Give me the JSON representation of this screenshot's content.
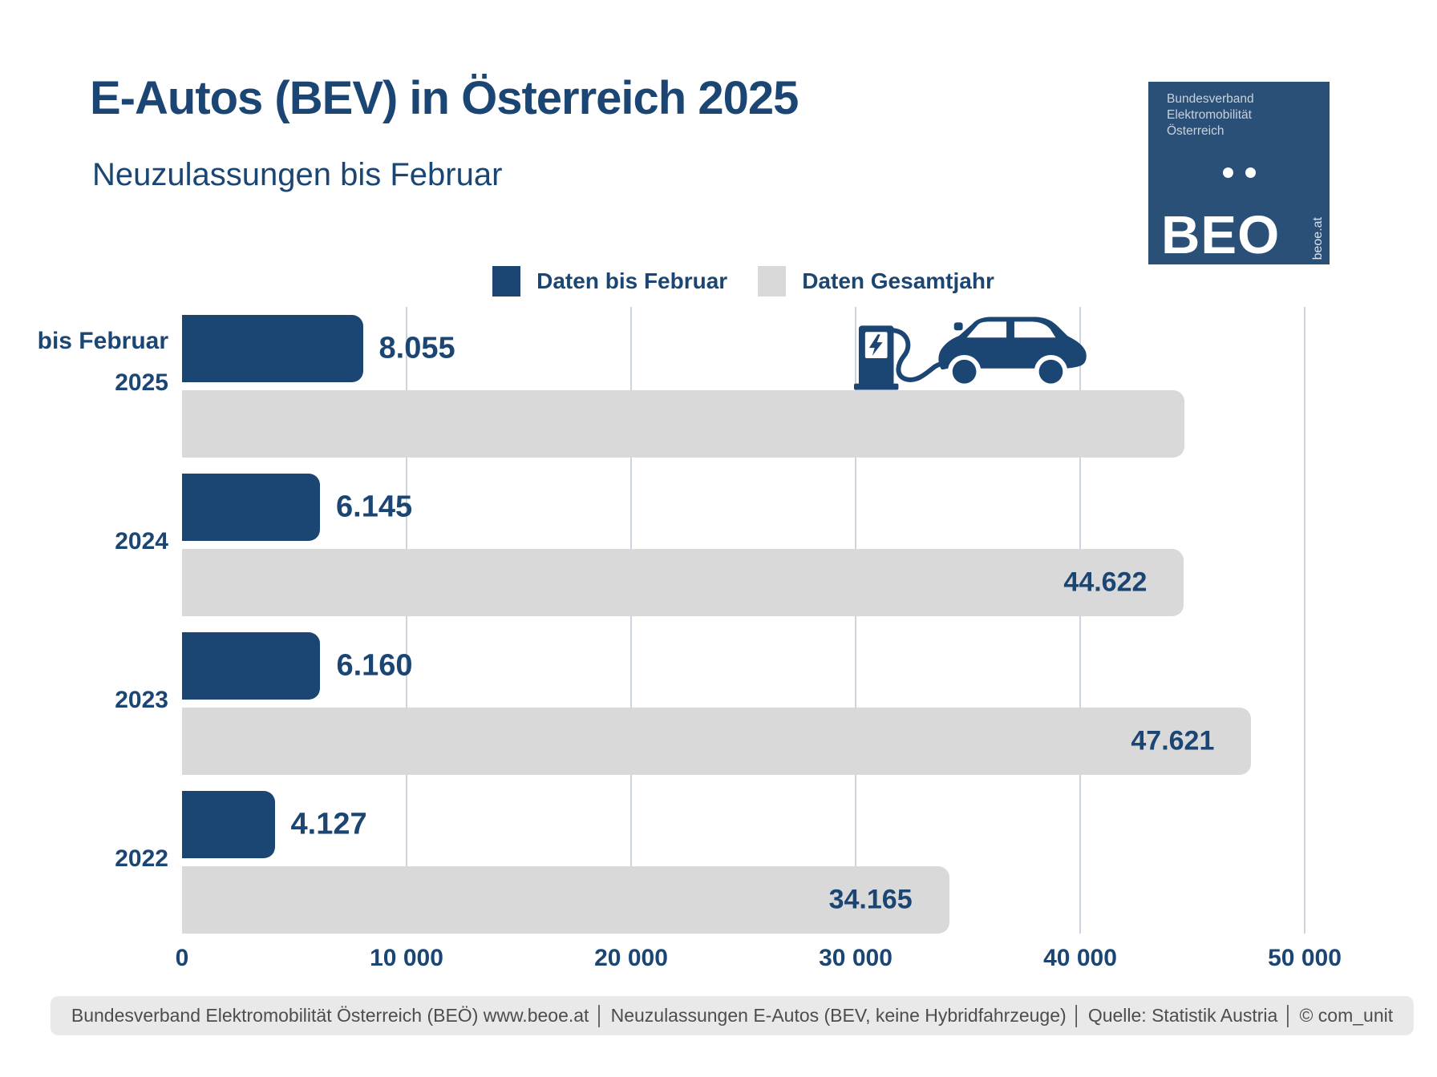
{
  "colors": {
    "navy": "#1b4673",
    "gray_bar": "#d9d9d9",
    "gridline": "#ccd5dd",
    "logo_bg": "#2b5078",
    "footer_bg": "#e9e9e9"
  },
  "header": {
    "title": "E-Autos (BEV) in Österreich 2025",
    "subtitle": "Neuzulassungen bis Februar"
  },
  "logo": {
    "org_lines": [
      "Bundesverband",
      "Elektromobilität",
      "Österreich"
    ],
    "acronym": "BEO",
    "website": "beoe.at"
  },
  "legend": {
    "items": [
      {
        "label": "Daten bis Februar",
        "color": "#1b4673"
      },
      {
        "label": "Daten Gesamtjahr",
        "color": "#d9d9d9"
      }
    ]
  },
  "chart_data": {
    "type": "bar",
    "orientation": "horizontal",
    "title": "E-Autos (BEV) in Österreich 2025 – Neuzulassungen bis Februar",
    "xlim": [
      0,
      50000
    ],
    "x_ticks": [
      {
        "label": "0",
        "value": 0
      },
      {
        "label": "10 000",
        "value": 10000
      },
      {
        "label": "20 000",
        "value": 20000
      },
      {
        "label": "30 000",
        "value": 30000
      },
      {
        "label": "40 000",
        "value": 40000
      },
      {
        "label": "50 000",
        "value": 50000
      }
    ],
    "grid": true,
    "legend_position": "top-center",
    "series_names": [
      "Daten bis Februar",
      "Daten Gesamtjahr"
    ],
    "rows": [
      {
        "category": "2025",
        "label_lines": [
          "bis Februar",
          "2025"
        ],
        "feb": {
          "value": 8055,
          "label": "8.055"
        },
        "year": {
          "value": 44650,
          "label": ""
        },
        "icon": "ev-charging-car"
      },
      {
        "category": "2024",
        "label_lines": [
          "2024"
        ],
        "feb": {
          "value": 6145,
          "label": "6.145"
        },
        "year": {
          "value": 44622,
          "label": "44.622"
        }
      },
      {
        "category": "2023",
        "label_lines": [
          "2023"
        ],
        "feb": {
          "value": 6160,
          "label": "6.160"
        },
        "year": {
          "value": 47621,
          "label": "47.621"
        }
      },
      {
        "category": "2022",
        "label_lines": [
          "2022"
        ],
        "feb": {
          "value": 4127,
          "label": "4.127"
        },
        "year": {
          "value": 34165,
          "label": "34.165"
        }
      }
    ]
  },
  "footer": {
    "text": "Bundesverband Elektromobilität Österreich (BEÖ) www.beoe.at │ Neuzulassungen E-Autos (BEV, keine Hybridfahrzeuge) │ Quelle: Statistik Austria │ © com_unit"
  }
}
